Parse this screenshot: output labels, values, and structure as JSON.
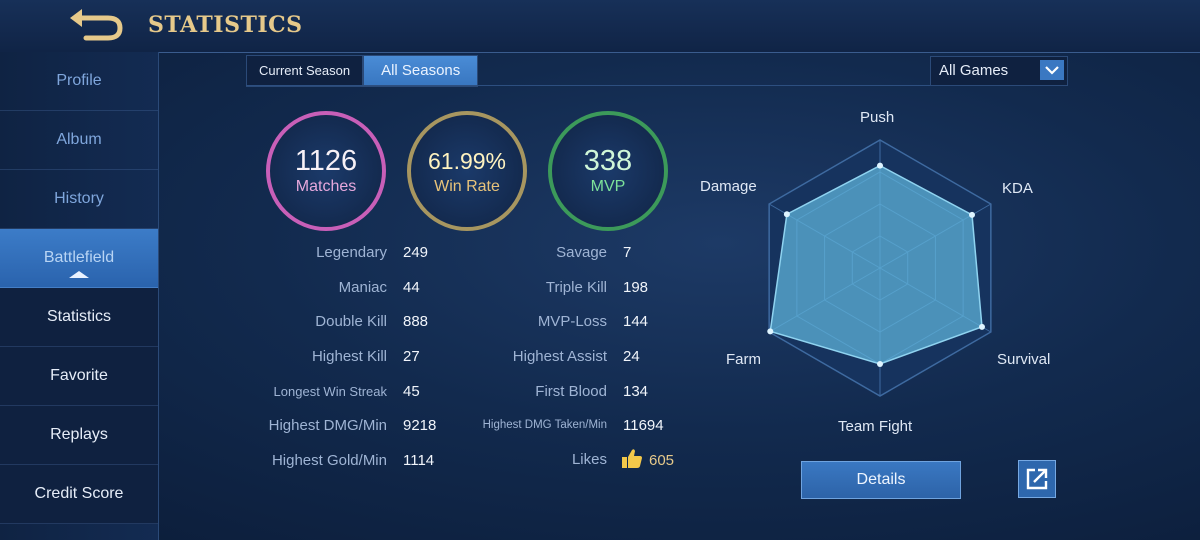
{
  "header": {
    "title": "STATISTICS",
    "back_icon": "back-arrow-icon"
  },
  "sidebar": {
    "items": [
      {
        "label": "Profile"
      },
      {
        "label": "Album"
      },
      {
        "label": "History"
      },
      {
        "label": "Battlefield"
      },
      {
        "label": "Statistics"
      },
      {
        "label": "Favorite"
      },
      {
        "label": "Replays"
      },
      {
        "label": "Credit Score"
      }
    ]
  },
  "tabs": [
    {
      "label": "Current Season"
    },
    {
      "label": "All Seasons"
    }
  ],
  "selected_tab": "All Seasons",
  "filter": {
    "value": "All Games"
  },
  "summary": {
    "matches": {
      "value": "1126",
      "label": "Matches"
    },
    "win_rate": {
      "value": "61.99%",
      "label": "Win Rate"
    },
    "mvp": {
      "value": "338",
      "label": "MVP"
    }
  },
  "stats_left": [
    {
      "label": "Legendary",
      "value": "249"
    },
    {
      "label": "Maniac",
      "value": "44"
    },
    {
      "label": "Double Kill",
      "value": "888"
    },
    {
      "label": "Highest Kill",
      "value": "27"
    },
    {
      "label": "Longest Win Streak",
      "value": "45"
    },
    {
      "label": "Highest DMG/Min",
      "value": "9218"
    },
    {
      "label": "Highest Gold/Min",
      "value": "1114"
    }
  ],
  "stats_right": [
    {
      "label": "Savage",
      "value": "7"
    },
    {
      "label": "Triple Kill",
      "value": "198"
    },
    {
      "label": "MVP-Loss",
      "value": "144"
    },
    {
      "label": "Highest Assist",
      "value": "24"
    },
    {
      "label": "First Blood",
      "value": "134"
    },
    {
      "label": "Highest DMG Taken/Min",
      "value": "11694"
    },
    {
      "label": "Likes",
      "value": "605"
    }
  ],
  "radar": {
    "axes": [
      "Push",
      "KDA",
      "Survival",
      "Team Fight",
      "Farm",
      "Damage"
    ],
    "values": [
      0.8,
      0.83,
      0.92,
      0.75,
      0.99,
      0.84
    ],
    "fill_color": "#5fb6dc",
    "grid_color": "#3e6aa0"
  },
  "actions": {
    "details_label": "Details",
    "share_icon": "share-icon"
  },
  "colors": {
    "accent_gold": "#e6c98a",
    "matches_ring": "#c85fb8",
    "winrate_ring": "#a79660",
    "mvp_ring": "#3c9a5a",
    "active_blue": "#3876c0"
  }
}
